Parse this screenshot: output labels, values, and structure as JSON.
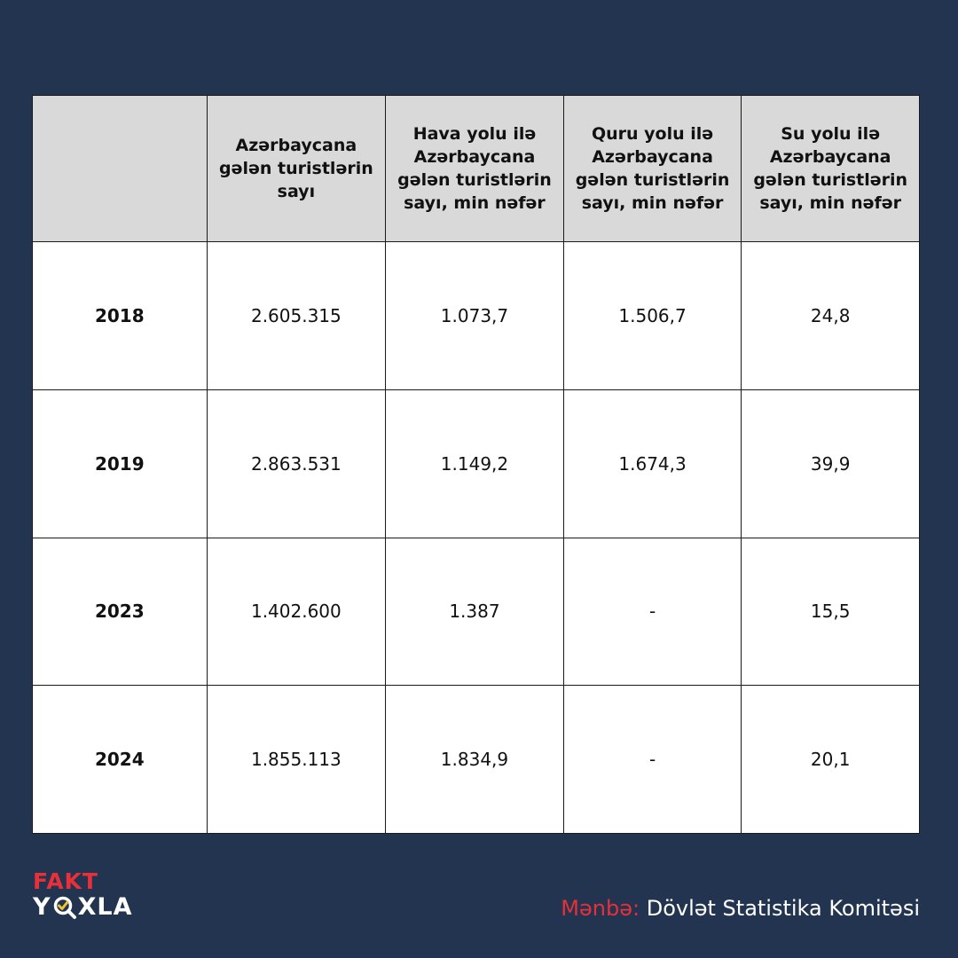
{
  "table": {
    "headers": [
      "",
      "Azərbaycana gələn turistlərin sayı",
      "Hava yolu ilə Azərbaycana gələn turistlərin sayı, min nəfər",
      "Quru yolu ilə Azərbaycana gələn turistlərin sayı, min nəfər",
      "Su yolu ilə Azərbaycana gələn turistlərin sayı, min nəfər"
    ],
    "rows": [
      [
        "2018",
        "2.605.315",
        "1.073,7",
        "1.506,7",
        "24,8"
      ],
      [
        "2019",
        "2.863.531",
        "1.149,2",
        "1.674,3",
        "39,9"
      ],
      [
        "2023",
        "1.402.600",
        "1.387",
        "-",
        "15,5"
      ],
      [
        "2024",
        "1.855.113",
        "1.834,9",
        "-",
        "20,1"
      ]
    ]
  },
  "logo": {
    "line1": "FAKT",
    "line2_start": "Y",
    "line2_end": "XLA",
    "icon": "magnifier-check-icon"
  },
  "source": {
    "label": "Mənbə:",
    "text": " Dövlət Statistika Komitəsi"
  },
  "colors": {
    "background": "#22344f",
    "header_bg": "#d9d9d9",
    "accent_red": "#e8303a",
    "accent_yellow": "#f2c230"
  }
}
